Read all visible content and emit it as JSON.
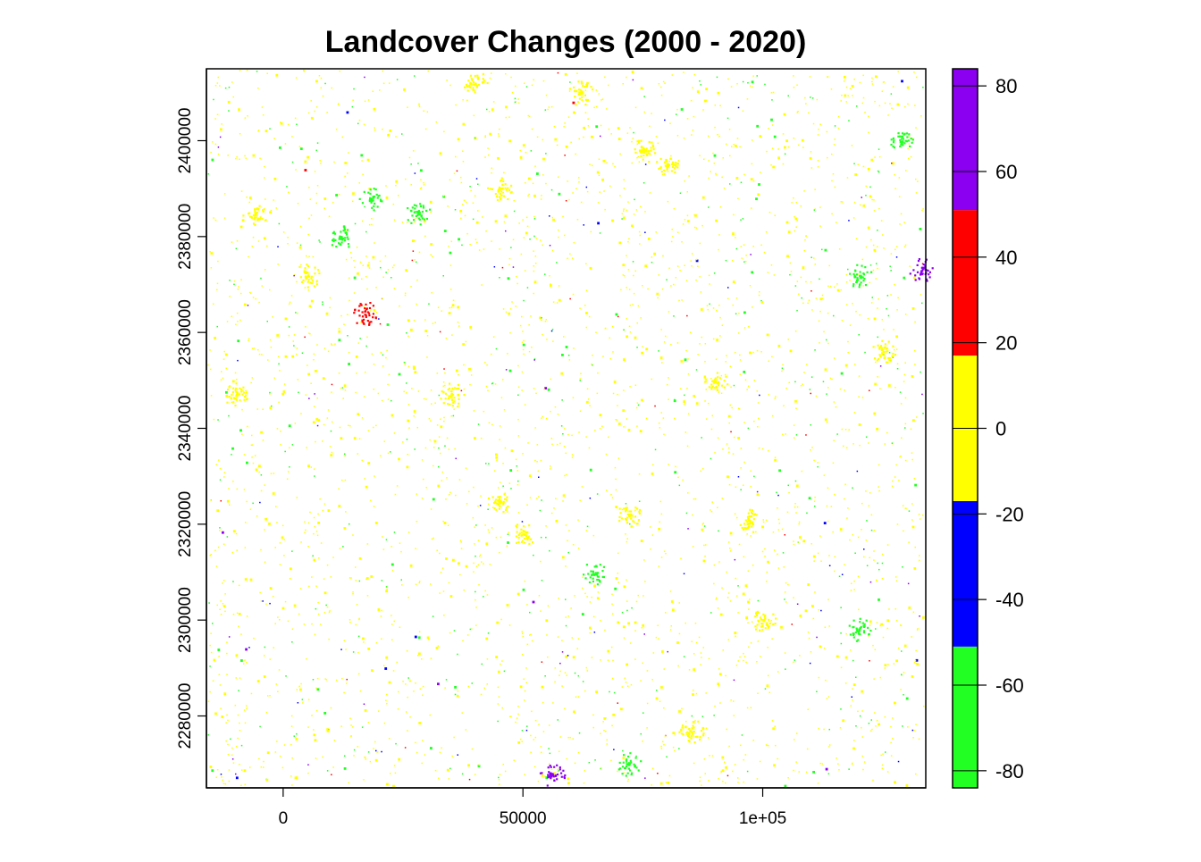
{
  "chart_data": {
    "type": "heatmap",
    "title": "Landcover Changes (2000 - 2020)",
    "xlabel": "",
    "ylabel": "",
    "xlim": [
      -16000,
      134000
    ],
    "ylim": [
      2265000,
      2415000
    ],
    "x_ticks": [
      0,
      50000,
      100000
    ],
    "x_tick_labels": [
      "0",
      "50000",
      "1e+05"
    ],
    "y_ticks": [
      2280000,
      2300000,
      2320000,
      2340000,
      2360000,
      2380000,
      2400000
    ],
    "y_tick_labels": [
      "2280000",
      "2300000",
      "2320000",
      "2340000",
      "2360000",
      "2380000",
      "2400000"
    ],
    "grid": false,
    "background": "#ffffff",
    "legend": {
      "placement": "right",
      "range": [
        -84,
        84
      ],
      "ticks": [
        -80,
        -60,
        -40,
        -20,
        0,
        20,
        40,
        60,
        80
      ],
      "tick_labels": [
        "-80",
        "-60",
        "-40",
        "-20",
        "0",
        "20",
        "40",
        "60",
        "80"
      ],
      "classes": [
        {
          "from": -84,
          "to": -51,
          "color": "#22ff22"
        },
        {
          "from": -51,
          "to": -17,
          "color": "#0000ff"
        },
        {
          "from": -17,
          "to": 17,
          "color": "#ffff00"
        },
        {
          "from": 17,
          "to": 51,
          "color": "#ff0000"
        },
        {
          "from": 51,
          "to": 84,
          "color": "#8b00f0"
        }
      ]
    },
    "raster_features": [
      {
        "x": -6000,
        "y": 2385000,
        "value": 0
      },
      {
        "x": 12000,
        "y": 2380000,
        "value": -70
      },
      {
        "x": 5000,
        "y": 2372000,
        "value": 0
      },
      {
        "x": 28000,
        "y": 2385000,
        "value": -70
      },
      {
        "x": 18000,
        "y": 2388000,
        "value": -70
      },
      {
        "x": 45000,
        "y": 2390000,
        "value": 0
      },
      {
        "x": 75000,
        "y": 2398000,
        "value": 0
      },
      {
        "x": 80000,
        "y": 2395000,
        "value": 0
      },
      {
        "x": 120000,
        "y": 2372000,
        "value": -70
      },
      {
        "x": -10000,
        "y": 2347000,
        "value": 0
      },
      {
        "x": 35000,
        "y": 2347000,
        "value": 0
      },
      {
        "x": 45000,
        "y": 2325000,
        "value": 0
      },
      {
        "x": 50000,
        "y": 2318000,
        "value": 0
      },
      {
        "x": 72000,
        "y": 2322000,
        "value": 0
      },
      {
        "x": 90000,
        "y": 2350000,
        "value": 0
      },
      {
        "x": 97000,
        "y": 2321000,
        "value": 0
      },
      {
        "x": 100000,
        "y": 2300000,
        "value": 0
      },
      {
        "x": 72000,
        "y": 2270000,
        "value": -70
      },
      {
        "x": 85000,
        "y": 2277000,
        "value": 0
      },
      {
        "x": 65000,
        "y": 2310000,
        "value": -70
      },
      {
        "x": 120000,
        "y": 2298000,
        "value": -70
      },
      {
        "x": 125000,
        "y": 2356000,
        "value": 0
      },
      {
        "x": 40000,
        "y": 2412000,
        "value": 0
      },
      {
        "x": 62000,
        "y": 2410000,
        "value": 0
      },
      {
        "x": 129000,
        "y": 2400000,
        "value": -70
      },
      {
        "x": 133000,
        "y": 2373000,
        "value": 70
      },
      {
        "x": 17000,
        "y": 2364000,
        "value": 30
      },
      {
        "x": 56000,
        "y": 2268000,
        "value": 70
      }
    ]
  }
}
